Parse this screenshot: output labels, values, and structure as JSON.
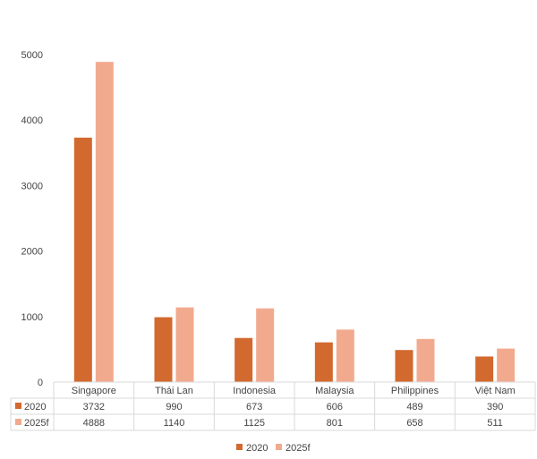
{
  "chart_data": {
    "type": "bar",
    "title": "",
    "categories": [
      "Singapore",
      "Thái Lan",
      "Indonesia",
      "Malaysia",
      "Philippines",
      "Việt Nam"
    ],
    "series": [
      {
        "name": "2020",
        "values": [
          3732,
          990,
          673,
          606,
          489,
          390
        ],
        "color": "#d2692e"
      },
      {
        "name": "2025f",
        "values": [
          4888,
          1140,
          1125,
          801,
          658,
          511
        ],
        "color": "#f2aa8f"
      }
    ],
    "ylim": [
      0,
      5000
    ],
    "yticks": [
      0,
      1000,
      2000,
      3000,
      4000,
      5000
    ],
    "grid": false,
    "data_table": true,
    "legend_position": "bottom"
  }
}
